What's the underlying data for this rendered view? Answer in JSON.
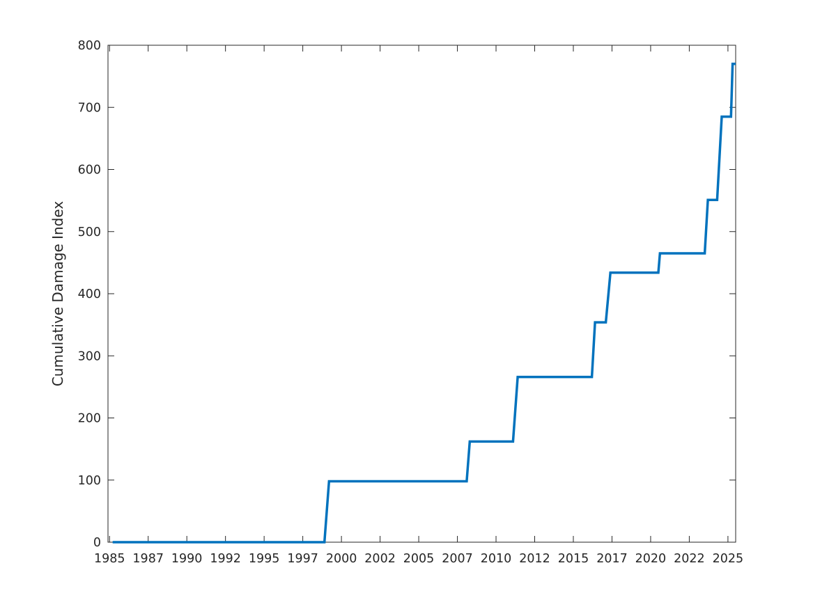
{
  "chart_data": {
    "type": "line",
    "title": "",
    "xlabel": "",
    "ylabel": "Cumulative Damage Index",
    "x_ticks": [
      "1985",
      "1987",
      "1990",
      "1992",
      "1995",
      "1997",
      "2000",
      "2002",
      "2005",
      "2007",
      "2010",
      "2012",
      "2015",
      "2017",
      "2020",
      "2022",
      "2025"
    ],
    "x_tick_values": [
      1985.0,
      1987.5,
      1990.0,
      1992.5,
      1995.0,
      1997.5,
      2000.0,
      2002.5,
      2005.0,
      2007.5,
      2010.0,
      2012.5,
      2015.0,
      2017.5,
      2020.0,
      2022.5,
      2025.0
    ],
    "y_ticks": [
      "0",
      "100",
      "200",
      "300",
      "400",
      "500",
      "600",
      "700",
      "800"
    ],
    "xlim": [
      1984.9,
      2025.5
    ],
    "ylim": [
      0,
      800
    ],
    "grid": false,
    "legend": "none",
    "line_color": "#0072bd",
    "series": [
      {
        "x": [
          1985.2,
          1998.9,
          1999.2,
          2008.1,
          2008.3,
          2011.1,
          2011.4,
          2016.2,
          2016.4,
          2017.1,
          2017.4,
          2020.5,
          2020.6,
          2023.5,
          2023.7,
          2024.3,
          2024.6,
          2025.2,
          2025.3,
          2025.5
        ],
        "y": [
          0,
          0,
          98,
          98,
          162,
          162,
          266,
          266,
          354,
          354,
          434,
          434,
          465,
          465,
          551,
          551,
          685,
          685,
          770,
          770
        ]
      }
    ]
  }
}
